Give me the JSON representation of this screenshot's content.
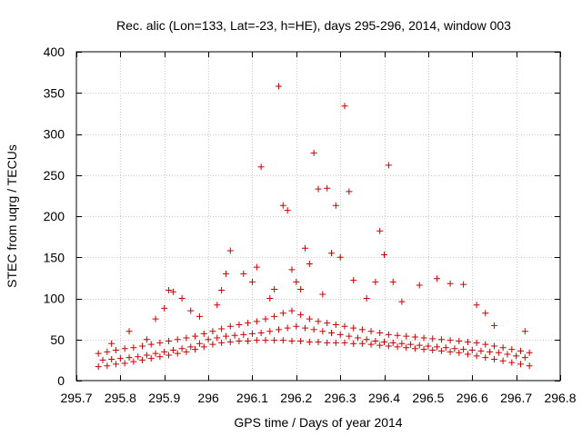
{
  "chart_data": {
    "type": "scatter",
    "title": "Rec. alic (Lon=133, Lat=-23, h=HE), days 295-296, 2014, window 003",
    "xlabel": "GPS time / Days of year 2014",
    "ylabel": "STEC from uqrg / TECUs",
    "xlim": [
      295.7,
      296.8
    ],
    "ylim": [
      0,
      400
    ],
    "x_ticks": [
      295.7,
      295.8,
      295.9,
      296.0,
      296.1,
      296.2,
      296.3,
      296.4,
      296.5,
      296.6,
      296.7,
      296.8
    ],
    "x_tick_labels": [
      "295.7",
      "295.8",
      "295.9",
      "296",
      "296.1",
      "296.2",
      "296.3",
      "296.4",
      "296.5",
      "296.6",
      "296.7",
      "296.8"
    ],
    "y_ticks": [
      0,
      50,
      100,
      150,
      200,
      250,
      300,
      350,
      400
    ],
    "y_tick_labels": [
      "0",
      "50",
      "100",
      "150",
      "200",
      "250",
      "300",
      "350",
      "400"
    ],
    "grid": true,
    "marker": "+",
    "colors": {
      "series": "#cc0000",
      "grid": "#c8c8c8",
      "axes": "#000000"
    },
    "series": [
      {
        "name": "",
        "x": [
          295.75,
          295.77,
          295.79,
          295.81,
          295.83,
          295.85,
          295.87,
          295.89,
          295.91,
          295.93,
          295.95,
          295.97,
          295.99,
          296.01,
          296.03,
          296.05,
          296.07,
          296.09,
          296.11,
          296.13,
          296.15,
          296.17,
          296.19,
          296.21,
          296.23,
          296.25,
          296.27,
          296.29,
          296.31,
          296.33,
          296.35,
          296.37,
          296.39,
          296.41,
          296.43,
          296.45,
          296.47,
          296.49,
          296.51,
          296.53,
          296.55,
          296.57,
          296.59,
          296.61,
          296.63,
          296.65,
          296.67,
          296.69,
          296.71,
          296.73
        ],
        "y": [
          17,
          18,
          20,
          21,
          23,
          25,
          27,
          29,
          31,
          33,
          35,
          38,
          41,
          44,
          46,
          47,
          48,
          48,
          49,
          49,
          49,
          49,
          48,
          48,
          47,
          47,
          46,
          46,
          46,
          45,
          45,
          44,
          43,
          42,
          41,
          40,
          39,
          38,
          37,
          36,
          35,
          34,
          32,
          30,
          28,
          26,
          24,
          22,
          20,
          18
        ]
      },
      {
        "name": "",
        "x": [
          295.76,
          295.78,
          295.8,
          295.82,
          295.84,
          295.86,
          295.88,
          295.9,
          295.92,
          295.94,
          295.96,
          295.98,
          296.0,
          296.02,
          296.04,
          296.06,
          296.08,
          296.1,
          296.12,
          296.14,
          296.16,
          296.18,
          296.2,
          296.22,
          296.24,
          296.26,
          296.28,
          296.3,
          296.32,
          296.34,
          296.36,
          296.38,
          296.4,
          296.42,
          296.44,
          296.46,
          296.48,
          296.5,
          296.52,
          296.54,
          296.56,
          296.58,
          296.6,
          296.62,
          296.64,
          296.66,
          296.68,
          296.7,
          296.72
        ],
        "y": [
          25,
          26,
          27,
          28,
          29,
          31,
          33,
          35,
          37,
          39,
          41,
          45,
          50,
          52,
          54,
          55,
          56,
          57,
          58,
          60,
          62,
          64,
          66,
          64,
          62,
          60,
          58,
          56,
          54,
          52,
          50,
          48,
          47,
          46,
          45,
          44,
          43,
          42,
          41,
          40,
          39,
          38,
          37,
          36,
          35,
          34,
          32,
          30,
          28
        ]
      },
      {
        "name": "",
        "x": [
          295.75,
          295.77,
          295.79,
          295.81,
          295.83,
          295.85,
          295.87,
          295.89,
          295.91,
          295.93,
          295.95,
          295.97,
          295.99,
          296.01,
          296.03,
          296.05,
          296.07,
          296.09,
          296.11,
          296.13,
          296.15,
          296.17,
          296.19,
          296.21,
          296.23,
          296.25,
          296.27,
          296.29,
          296.31,
          296.33,
          296.35,
          296.37,
          296.39,
          296.41,
          296.43,
          296.45,
          296.47,
          296.49,
          296.51,
          296.53,
          296.55,
          296.57,
          296.59,
          296.61,
          296.63,
          296.65,
          296.67,
          296.69,
          296.71,
          296.73
        ],
        "y": [
          33,
          35,
          37,
          39,
          40,
          42,
          44,
          46,
          48,
          50,
          52,
          54,
          57,
          60,
          63,
          66,
          68,
          70,
          72,
          75,
          78,
          82,
          85,
          80,
          75,
          72,
          70,
          68,
          66,
          64,
          62,
          60,
          58,
          56,
          55,
          54,
          53,
          52,
          51,
          50,
          49,
          48,
          47,
          46,
          44,
          42,
          40,
          38,
          36,
          34
        ]
      },
      {
        "name": "",
        "x": [
          295.78,
          295.82,
          295.86,
          295.88,
          295.9,
          295.91,
          295.92,
          295.94,
          295.96,
          295.98,
          296.02,
          296.03,
          296.04,
          296.05,
          296.08,
          296.1,
          296.11,
          296.12,
          296.14,
          296.15,
          296.16,
          296.17,
          296.18,
          296.19,
          296.2,
          296.21,
          296.22,
          296.23,
          296.24,
          296.25,
          296.26,
          296.27,
          296.28,
          296.29,
          296.3,
          296.31,
          296.32,
          296.33,
          296.36,
          296.38,
          296.39,
          296.4,
          296.41,
          296.42,
          296.44,
          296.48,
          296.52,
          296.55,
          296.58,
          296.61,
          296.63,
          296.65,
          296.72
        ],
        "y": [
          45,
          60,
          50,
          75,
          88,
          110,
          108,
          100,
          85,
          78,
          92,
          110,
          130,
          158,
          130,
          120,
          138,
          260,
          100,
          111,
          358,
          213,
          207,
          135,
          120,
          111,
          161,
          142,
          277,
          233,
          105,
          234,
          155,
          213,
          150,
          334,
          230,
          122,
          100,
          120,
          182,
          153,
          262,
          120,
          96,
          116,
          124,
          118,
          117,
          92,
          82,
          67,
          60
        ]
      }
    ]
  }
}
